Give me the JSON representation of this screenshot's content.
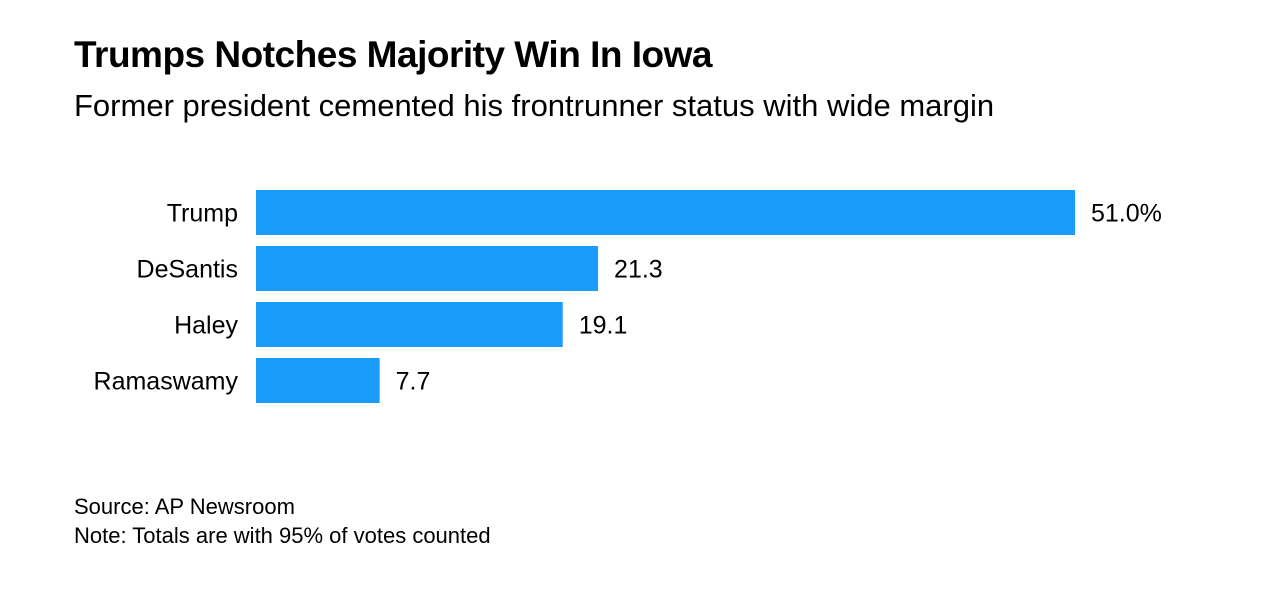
{
  "header": {
    "title": "Trumps Notches Majority Win In Iowa",
    "subtitle": "Former president cemented his frontrunner status with wide margin"
  },
  "footer": {
    "source": "Source: AP Newsroom",
    "note": "Note: Totals are with 95% of votes counted"
  },
  "colors": {
    "bar": "#1a9cfb"
  },
  "chart_data": {
    "type": "bar",
    "orientation": "horizontal",
    "categories": [
      "Trump",
      "DeSantis",
      "Haley",
      "Ramaswamy"
    ],
    "values": [
      51.0,
      21.3,
      19.1,
      7.7
    ],
    "value_labels": [
      "51.0%",
      "21.3",
      "19.1",
      "7.7"
    ],
    "title": "Trumps Notches Majority Win In Iowa",
    "subtitle": "Former president cemented his frontrunner status with wide margin",
    "xlim": [
      0,
      51
    ],
    "grid": false,
    "legend": "none"
  }
}
